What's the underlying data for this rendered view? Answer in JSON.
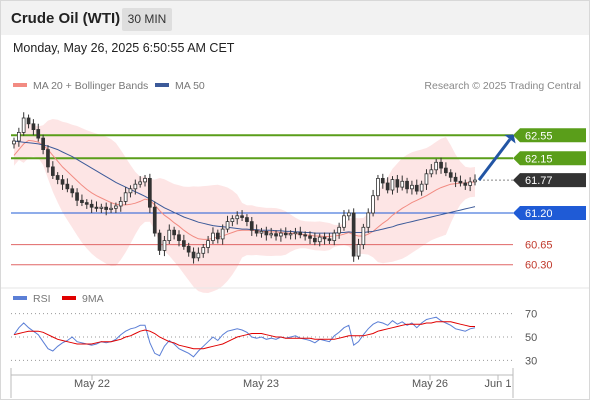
{
  "header": {
    "title": "Crude Oil (WTI)",
    "timeframe": "30 MIN",
    "datetime": "Monday, May 26, 2025 6:50:55 AM CET"
  },
  "legend": {
    "ma20_label": "MA 20 + Bollinger Bands",
    "ma20_color": "#f28b82",
    "ma50_label": "MA 50",
    "ma50_color": "#3c5a99",
    "credit": "Research © 2025 Trading Central"
  },
  "rsi_legend": {
    "rsi_label": "RSI",
    "rsi_color": "#5b7fd6",
    "ma_label": "9MA",
    "ma_color": "#e00000"
  },
  "chart_data": [
    {
      "type": "candlestick",
      "title": "Crude Oil (WTI)",
      "ylim": [
        60.0,
        62.85
      ],
      "x_ticks": [
        "May 22",
        "May 23",
        "May 26",
        "Jun 1"
      ],
      "levels": [
        {
          "value": 62.55,
          "label": "62.55",
          "kind": "resistance",
          "color": "#5a9e1a"
        },
        {
          "value": 62.15,
          "label": "62.15",
          "kind": "resistance",
          "color": "#5a9e1a"
        },
        {
          "value": 61.77,
          "label": "61.77",
          "kind": "last",
          "color": "#333333"
        },
        {
          "value": 61.2,
          "label": "61.20",
          "kind": "pivot",
          "color": "#1f5bd6"
        },
        {
          "value": 60.65,
          "label": "60.65",
          "kind": "support",
          "color": "#e06666"
        },
        {
          "value": 60.3,
          "label": "60.30",
          "kind": "support",
          "color": "#e06666"
        }
      ],
      "forecast_arrow": {
        "from": 61.77,
        "to": 62.55,
        "color": "#2255a4"
      },
      "close": [
        62.45,
        62.6,
        62.85,
        62.75,
        62.65,
        62.5,
        62.3,
        62.0,
        61.85,
        61.78,
        61.7,
        61.62,
        61.55,
        61.42,
        61.38,
        61.35,
        61.3,
        61.28,
        61.3,
        61.26,
        61.28,
        61.32,
        61.4,
        61.55,
        61.62,
        61.7,
        61.74,
        61.8,
        61.3,
        60.85,
        60.55,
        60.72,
        60.9,
        60.82,
        60.72,
        60.62,
        60.52,
        60.42,
        60.5,
        60.6,
        60.72,
        60.85,
        60.75,
        60.92,
        61.05,
        61.1,
        61.15,
        61.12,
        61.05,
        60.9,
        60.85,
        60.88,
        60.82,
        60.84,
        60.8,
        60.85,
        60.82,
        60.84,
        60.86,
        60.82,
        60.8,
        60.76,
        60.7,
        60.78,
        60.75,
        60.72,
        60.85,
        60.95,
        61.15,
        61.2,
        60.45,
        60.65,
        60.95,
        61.2,
        61.5,
        61.8,
        61.72,
        61.6,
        61.78,
        61.65,
        61.75,
        61.62,
        61.68,
        61.58,
        61.7,
        61.88,
        61.95,
        62.08,
        61.98,
        61.9,
        61.82,
        61.75,
        61.72,
        61.68,
        61.74,
        61.77
      ],
      "ma20": [
        62.2,
        62.3,
        62.4,
        62.46,
        62.45,
        62.43,
        62.38,
        62.3,
        62.2,
        62.1,
        62.0,
        61.92,
        61.84,
        61.76,
        61.68,
        61.61,
        61.55,
        61.5,
        61.46,
        61.42,
        61.38,
        61.35,
        61.34,
        61.34,
        61.35,
        61.37,
        61.4,
        61.44,
        61.42,
        61.34,
        61.24,
        61.16,
        61.1,
        61.03,
        60.97,
        60.9,
        60.84,
        60.79,
        60.75,
        60.74,
        60.74,
        60.76,
        60.78,
        60.8,
        60.83,
        60.86,
        60.89,
        60.9,
        60.9,
        60.9,
        60.89,
        60.88,
        60.87,
        60.87,
        60.87,
        60.86,
        60.85,
        60.85,
        60.84,
        60.83,
        60.82,
        60.81,
        60.8,
        60.8,
        60.79,
        60.79,
        60.8,
        60.81,
        60.83,
        60.86,
        60.82,
        60.8,
        60.8,
        60.83,
        60.88,
        60.95,
        61.02,
        61.08,
        61.16,
        61.22,
        61.28,
        61.33,
        61.38,
        61.42,
        61.46,
        61.5,
        61.55,
        61.6,
        61.64,
        61.67,
        61.7,
        61.71,
        61.72,
        61.72,
        61.73,
        61.74
      ],
      "ma50": [
        62.45,
        62.44,
        62.43,
        62.42,
        62.41,
        62.4,
        62.38,
        62.36,
        62.33,
        62.3,
        62.26,
        62.22,
        62.18,
        62.13,
        62.08,
        62.03,
        61.98,
        61.93,
        61.88,
        61.83,
        61.78,
        61.73,
        61.69,
        61.65,
        61.61,
        61.57,
        61.53,
        61.49,
        61.44,
        61.39,
        61.34,
        61.29,
        61.25,
        61.21,
        61.17,
        61.13,
        61.1,
        61.07,
        61.04,
        61.02,
        61.0,
        60.98,
        60.97,
        60.96,
        60.95,
        60.94,
        60.93,
        60.92,
        60.92,
        60.91,
        60.91,
        60.9,
        60.9,
        60.9,
        60.89,
        60.89,
        60.88,
        60.88,
        60.87,
        60.87,
        60.86,
        60.86,
        60.85,
        60.85,
        60.85,
        60.85,
        60.85,
        60.86,
        60.86,
        60.87,
        60.86,
        60.86,
        60.86,
        60.87,
        60.88,
        60.9,
        60.92,
        60.94,
        60.96,
        60.99,
        61.01,
        61.03,
        61.05,
        61.07,
        61.09,
        61.11,
        61.13,
        61.15,
        61.17,
        61.19,
        61.21,
        61.23,
        61.25,
        61.27,
        61.29,
        61.31
      ]
    },
    {
      "type": "line",
      "title": "RSI",
      "ylim": [
        20,
        80
      ],
      "y_ticks": [
        70,
        50,
        30
      ],
      "series": [
        {
          "name": "RSI",
          "values": [
            52,
            58,
            62,
            58,
            55,
            52,
            46,
            40,
            38,
            42,
            45,
            47,
            50,
            46,
            45,
            44,
            43,
            44,
            46,
            45,
            46,
            48,
            52,
            55,
            57,
            58,
            60,
            60,
            45,
            36,
            34,
            42,
            47,
            44,
            40,
            38,
            36,
            33,
            38,
            42,
            46,
            50,
            47,
            52,
            55,
            56,
            57,
            56,
            54,
            50,
            49,
            50,
            48,
            49,
            48,
            50,
            49,
            50,
            51,
            49,
            48,
            47,
            45,
            48,
            47,
            46,
            51,
            54,
            58,
            60,
            43,
            46,
            52,
            57,
            61,
            63,
            62,
            60,
            64,
            61,
            63,
            60,
            62,
            58,
            62,
            65,
            66,
            67,
            64,
            62,
            60,
            57,
            56,
            55,
            57,
            58
          ]
        },
        {
          "name": "9MA",
          "values": [
            52,
            53,
            54,
            55,
            55,
            55,
            54,
            52,
            50,
            48,
            47,
            46,
            45,
            44,
            44,
            44,
            44,
            45,
            46,
            46,
            46,
            47,
            48,
            50,
            51,
            53,
            55,
            56,
            55,
            53,
            50,
            48,
            46,
            45,
            43,
            42,
            41,
            40,
            40,
            40,
            41,
            42,
            43,
            44,
            46,
            48,
            50,
            51,
            52,
            53,
            53,
            53,
            52,
            51,
            50,
            50,
            49,
            49,
            49,
            49,
            49,
            49,
            48,
            48,
            48,
            48,
            48,
            49,
            50,
            51,
            51,
            51,
            51,
            52,
            53,
            55,
            56,
            57,
            58,
            59,
            60,
            61,
            61,
            61,
            61,
            62,
            62,
            63,
            63,
            63,
            63,
            62,
            61,
            60,
            59,
            59
          ]
        }
      ]
    }
  ]
}
